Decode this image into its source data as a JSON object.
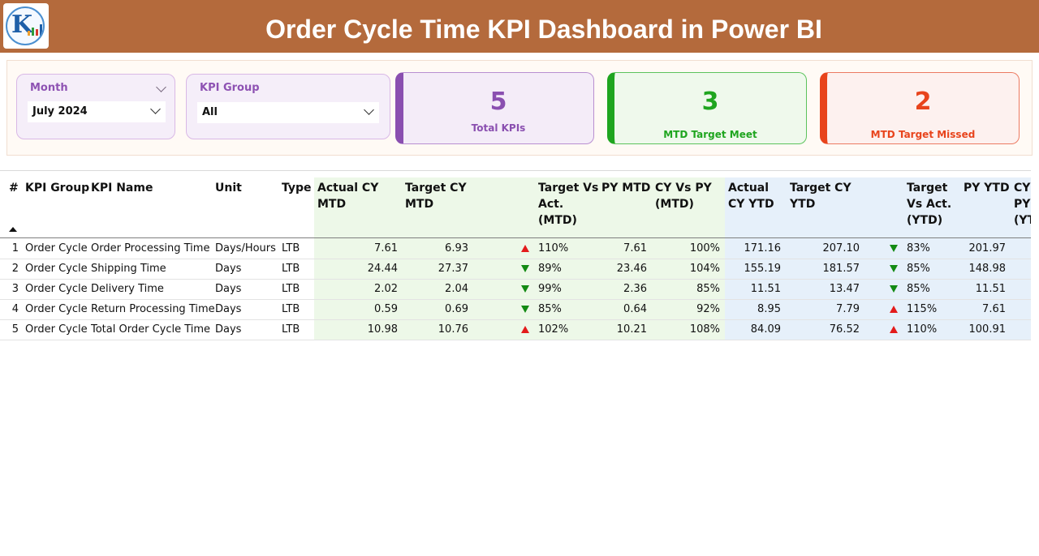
{
  "header": {
    "title": "Order Cycle Time KPI Dashboard in Power BI",
    "logo_text": "K"
  },
  "slicers": {
    "month": {
      "label": "Month",
      "value": "July 2024"
    },
    "kpi_group": {
      "label": "KPI Group",
      "value": "All"
    }
  },
  "cards": {
    "total": {
      "value": "5",
      "label": "Total KPIs",
      "color": "#8a4fb0"
    },
    "meet": {
      "value": "3",
      "label": "MTD Target Meet",
      "color": "#1fa51f"
    },
    "missed": {
      "value": "2",
      "label": "MTD Target Missed",
      "color": "#e8441c"
    }
  },
  "colors": {
    "mtd_bg": "#edf8e8",
    "ytd_bg": "#e6f0fa",
    "up_arrow": "#e31b1b",
    "down_arrow": "#138a13",
    "header_bg": "#b46a3c"
  },
  "table": {
    "headers": {
      "num": "#",
      "kpi_group": "KPI Group",
      "kpi_name": "KPI Name",
      "unit": "Unit",
      "type": "Type",
      "actual_cy_mtd": "Actual CY\nMTD",
      "target_cy_mtd": "Target CY\nMTD",
      "target_vs_act_mtd": "Target Vs\nAct.\n(MTD)",
      "py_mtd": "PY MTD",
      "cy_vs_py_mtd": "CY Vs PY\n(MTD)",
      "actual_cy_ytd": "Actual\nCY YTD",
      "target_cy_ytd": "Target CY\nYTD",
      "target_vs_act_ytd": "Target\nVs Act.\n(YTD)",
      "py_ytd": "PY YTD",
      "cy_vs_py_ytd": "CY\nPY\n(YT"
    },
    "rows": [
      {
        "num": "1",
        "kpi_group": "Order Cycle",
        "kpi_name": "Order Processing Time",
        "unit": "Days/Hours",
        "type": "LTB",
        "actual_cy_mtd": "7.61",
        "target_cy_mtd": "6.93",
        "mtd_icon": "up",
        "target_vs_act_mtd": "110%",
        "py_mtd": "7.61",
        "cy_vs_py_mtd": "100%",
        "actual_cy_ytd": "171.16",
        "target_cy_ytd": "207.10",
        "ytd_icon": "down",
        "target_vs_act_ytd": "83%",
        "py_ytd": "201.97"
      },
      {
        "num": "2",
        "kpi_group": "Order Cycle",
        "kpi_name": "Shipping Time",
        "unit": "Days",
        "type": "LTB",
        "actual_cy_mtd": "24.44",
        "target_cy_mtd": "27.37",
        "mtd_icon": "down",
        "target_vs_act_mtd": "89%",
        "py_mtd": "23.46",
        "cy_vs_py_mtd": "104%",
        "actual_cy_ytd": "155.19",
        "target_cy_ytd": "181.57",
        "ytd_icon": "down",
        "target_vs_act_ytd": "85%",
        "py_ytd": "148.98"
      },
      {
        "num": "3",
        "kpi_group": "Order Cycle",
        "kpi_name": "Delivery Time",
        "unit": "Days",
        "type": "LTB",
        "actual_cy_mtd": "2.02",
        "target_cy_mtd": "2.04",
        "mtd_icon": "down",
        "target_vs_act_mtd": "99%",
        "py_mtd": "2.36",
        "cy_vs_py_mtd": "85%",
        "actual_cy_ytd": "11.51",
        "target_cy_ytd": "13.47",
        "ytd_icon": "down",
        "target_vs_act_ytd": "85%",
        "py_ytd": "11.51"
      },
      {
        "num": "4",
        "kpi_group": "Order Cycle",
        "kpi_name": "Return Processing Time",
        "unit": "Days",
        "type": "LTB",
        "actual_cy_mtd": "0.59",
        "target_cy_mtd": "0.69",
        "mtd_icon": "down",
        "target_vs_act_mtd": "85%",
        "py_mtd": "0.64",
        "cy_vs_py_mtd": "92%",
        "actual_cy_ytd": "8.95",
        "target_cy_ytd": "7.79",
        "ytd_icon": "up",
        "target_vs_act_ytd": "115%",
        "py_ytd": "7.61"
      },
      {
        "num": "5",
        "kpi_group": "Order Cycle",
        "kpi_name": "Total Order Cycle Time",
        "unit": "Days",
        "type": "LTB",
        "actual_cy_mtd": "10.98",
        "target_cy_mtd": "10.76",
        "mtd_icon": "up",
        "target_vs_act_mtd": "102%",
        "py_mtd": "10.21",
        "cy_vs_py_mtd": "108%",
        "actual_cy_ytd": "84.09",
        "target_cy_ytd": "76.52",
        "ytd_icon": "up",
        "target_vs_act_ytd": "110%",
        "py_ytd": "100.91"
      }
    ]
  }
}
